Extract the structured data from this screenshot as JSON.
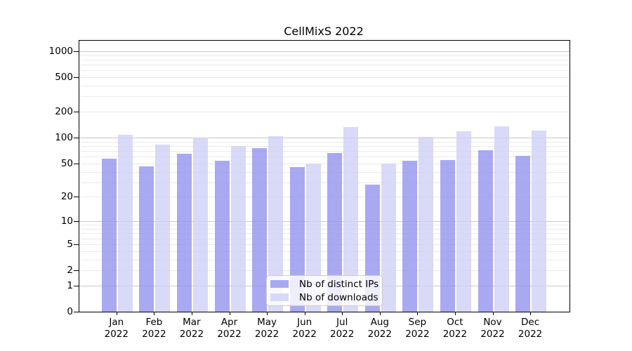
{
  "title": "CellMixS 2022",
  "chart_data": {
    "type": "bar",
    "title": "CellMixS 2022",
    "categories": [
      "Jan",
      "Feb",
      "Mar",
      "Apr",
      "May",
      "Jun",
      "Jul",
      "Aug",
      "Sep",
      "Oct",
      "Nov",
      "Dec"
    ],
    "year_label": "2022",
    "series": [
      {
        "name": "Nb of distinct IPs",
        "color": "rgba(148,148,239,0.8)",
        "color_over_white": "#a9a9f2",
        "values": [
          57,
          46,
          65,
          54,
          75,
          45,
          66,
          28,
          54,
          55,
          71,
          61
        ]
      },
      {
        "name": "Nb of downloads",
        "color": "rgba(208,208,246,0.8)",
        "color_over_white": "#d9d9f8",
        "values": [
          109,
          83,
          101,
          80,
          105,
          50,
          132,
          50,
          103,
          119,
          136,
          121
        ]
      }
    ],
    "y_ticks": [
      0,
      1,
      2,
      5,
      10,
      20,
      50,
      100,
      200,
      500,
      1000
    ],
    "y_scale": "log10(value+1)",
    "ylim": [
      0,
      1330
    ],
    "grid": {
      "major_values": [
        1,
        10,
        100,
        1000
      ],
      "minor_values": [
        2,
        3,
        4,
        5,
        6,
        7,
        8,
        9,
        20,
        30,
        40,
        50,
        60,
        70,
        80,
        90,
        200,
        300,
        400,
        500,
        600,
        700,
        800,
        900
      ],
      "major_color": "#c8c8c8",
      "minor_color": "#eaeaea"
    },
    "legend_position": "inside-bottom-center",
    "axis_color": "#000000",
    "background": "#ffffff"
  }
}
